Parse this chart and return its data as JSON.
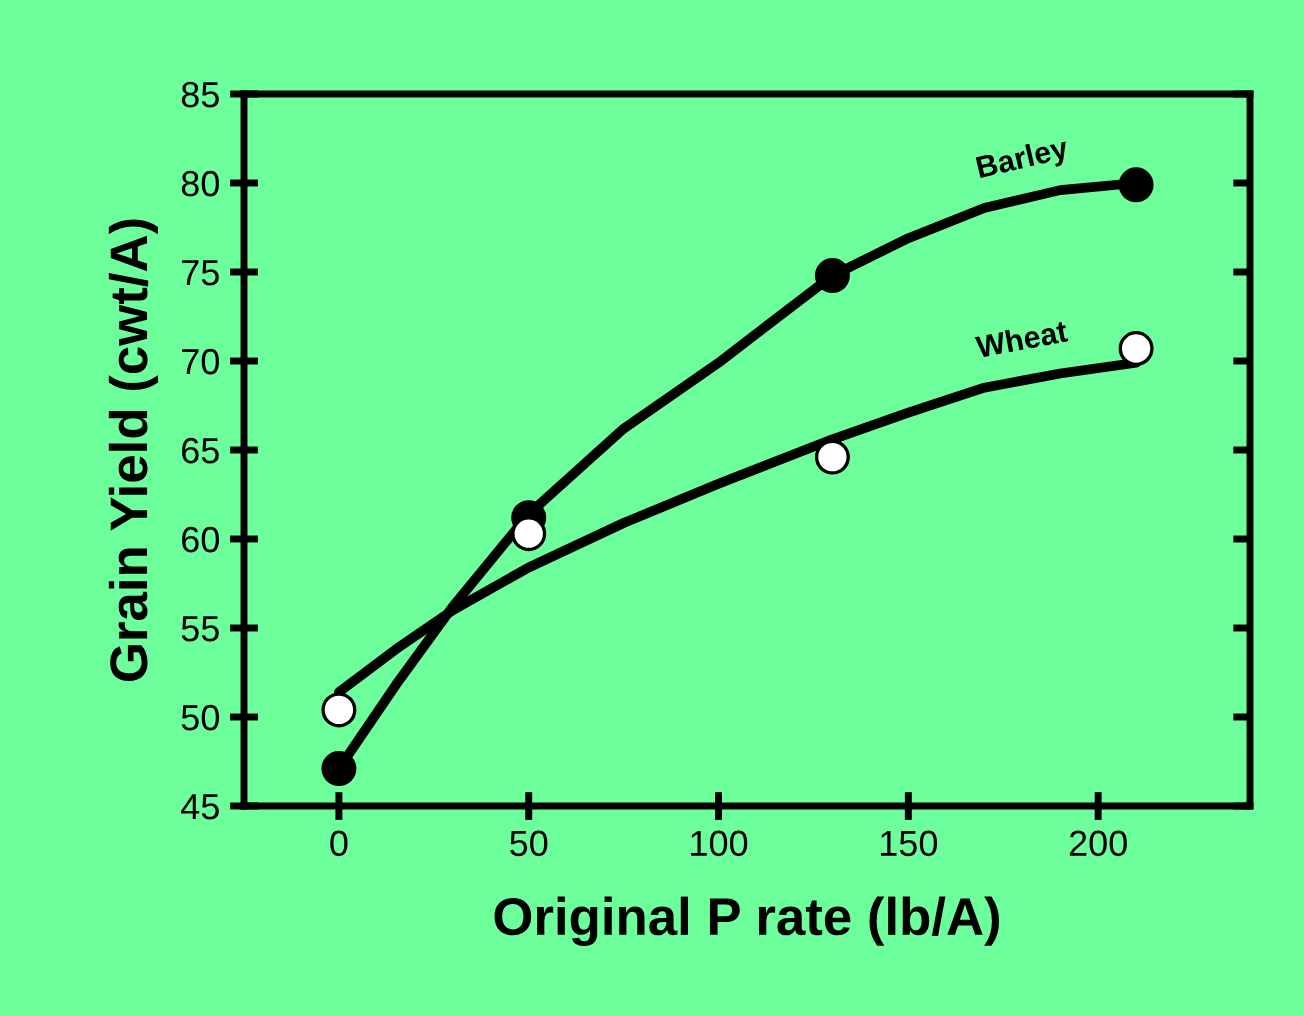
{
  "chart_data": {
    "type": "scatter",
    "xlabel": "Original P rate (lb/A)",
    "ylabel": "Grain Yield (cwt/A)",
    "xlim": [
      -25,
      240
    ],
    "ylim": [
      45,
      85
    ],
    "xticks": [
      0,
      50,
      100,
      150,
      200
    ],
    "yticks": [
      45,
      50,
      55,
      60,
      65,
      70,
      75,
      80,
      85
    ],
    "grid": false,
    "legend": false,
    "marker": "circle",
    "series": [
      {
        "type": "line",
        "name": "Barley",
        "color": "#000000",
        "marker": "none",
        "x": [
          0,
          15,
          30,
          50,
          75,
          100,
          130,
          150,
          170,
          190,
          210
        ],
        "values": [
          47.1,
          51.8,
          56.2,
          61.4,
          66.2,
          69.9,
          74.8,
          76.9,
          78.6,
          79.6,
          80
        ]
      },
      {
        "type": "line",
        "name": "Wheat",
        "color": "#000000",
        "marker": "none",
        "x": [
          0,
          15,
          30,
          50,
          75,
          100,
          130,
          150,
          170,
          190,
          210
        ],
        "values": [
          51.4,
          53.8,
          56,
          58.4,
          60.9,
          63.1,
          65.6,
          67.1,
          68.5,
          69.3,
          69.9
        ]
      },
      {
        "color": "#000000",
        "x": [
          0,
          50,
          130,
          210
        ],
        "values": [
          47.1,
          61.2,
          74.8,
          79.9
        ]
      },
      {
        "color": "#ffffff",
        "x": [
          0,
          50,
          130,
          210
        ],
        "values": [
          50.4,
          60.3,
          64.6,
          70.7
        ]
      }
    ]
  }
}
